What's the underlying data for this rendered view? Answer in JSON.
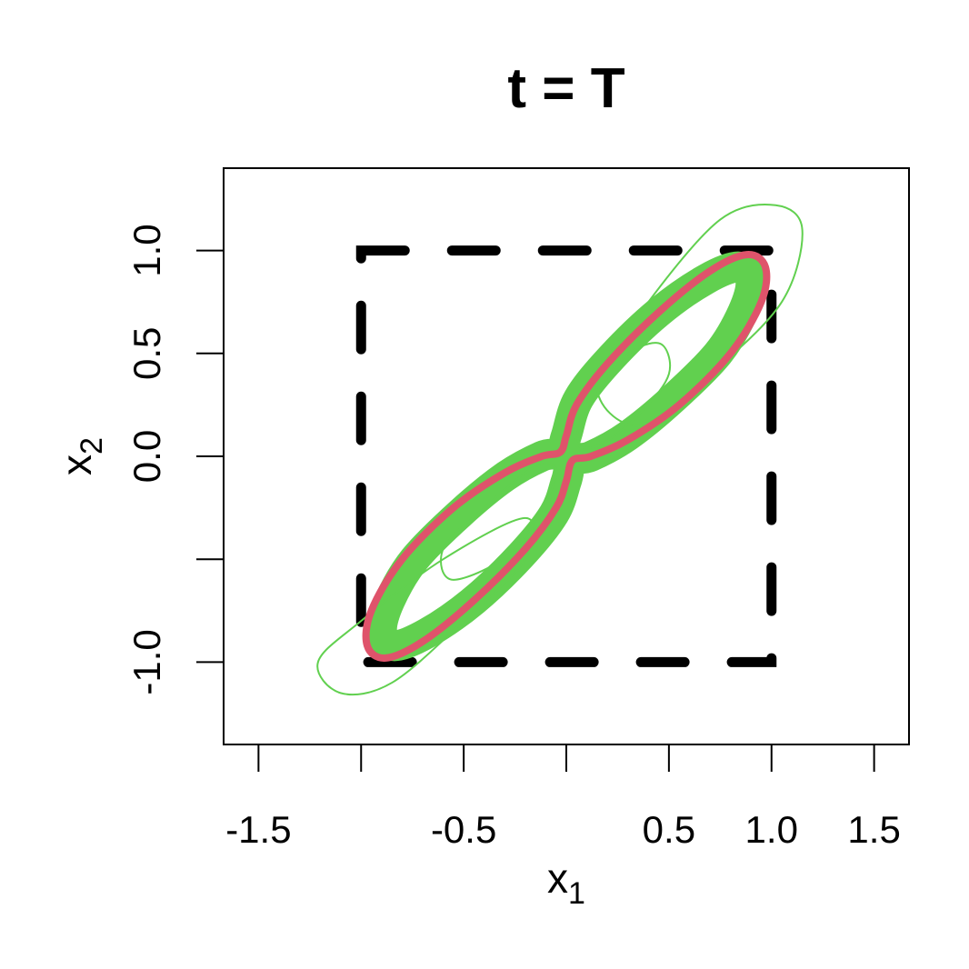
{
  "chart_data": {
    "type": "curves",
    "title": "t = T",
    "x_label": {
      "text": "x",
      "subscript": "1"
    },
    "y_label": {
      "text": "x",
      "subscript": "2"
    },
    "xlim": [
      -1.67,
      1.67
    ],
    "ylim": [
      -1.4,
      1.4
    ],
    "xticks": [
      {
        "value": -1.5,
        "label": "-1.5"
      },
      {
        "value": -1,
        "label": null
      },
      {
        "value": -0.5,
        "label": "-0.5"
      },
      {
        "value": 0,
        "label": null
      },
      {
        "value": 0.5,
        "label": "0.5"
      },
      {
        "value": 1,
        "label": "1.0"
      },
      {
        "value": 1.5,
        "label": "1.5"
      }
    ],
    "yticks": [
      {
        "value": -1,
        "label": "-1.0"
      },
      {
        "value": -0.5,
        "label": null
      },
      {
        "value": 0,
        "label": "0.0"
      },
      {
        "value": 0.5,
        "label": "0.5"
      },
      {
        "value": 1,
        "label": "1.0"
      }
    ],
    "reference_square": {
      "x": [
        -1,
        1
      ],
      "y": [
        -1,
        1
      ],
      "color": "#000000",
      "dashed": true
    },
    "series": [
      {
        "color": "#61d04f",
        "line_width": 34,
        "x": [
          0.0,
          0.06,
          0.22,
          0.45,
          0.68,
          0.84,
          0.9,
          0.86,
          0.74,
          0.52,
          0.3,
          0.12,
          0.03,
          0.0,
          -0.06,
          -0.22,
          -0.45,
          -0.68,
          -0.84,
          -0.9,
          -0.86,
          -0.74,
          -0.52,
          -0.3,
          -0.12,
          -0.03
        ],
        "y": [
          0.1,
          0.28,
          0.48,
          0.7,
          0.86,
          0.92,
          0.85,
          0.7,
          0.5,
          0.28,
          0.1,
          0.0,
          -0.02,
          -0.12,
          -0.28,
          -0.48,
          -0.7,
          -0.86,
          -0.92,
          -0.85,
          -0.7,
          -0.5,
          -0.28,
          -0.1,
          0.0,
          0.02
        ]
      },
      {
        "color": "#61d04f",
        "line_width": 2,
        "x": [
          0.15,
          0.4,
          0.75,
          1.02,
          1.15,
          1.05,
          0.7,
          0.35
        ],
        "y": [
          0.35,
          0.75,
          1.15,
          1.22,
          1.1,
          0.75,
          0.4,
          0.15
        ]
      },
      {
        "color": "#61d04f",
        "line_width": 2,
        "x": [
          -0.2,
          -0.6,
          -1.0,
          -1.21,
          -1.1,
          -0.85,
          -0.5,
          -0.2
        ],
        "y": [
          -0.3,
          -0.5,
          -0.8,
          -1.0,
          -1.15,
          -1.1,
          -0.8,
          -0.5
        ]
      },
      {
        "color": "#61d04f",
        "line_width": 2,
        "x": [
          0.05,
          0.25,
          0.45,
          0.5,
          0.35,
          0.15
        ],
        "y": [
          0.1,
          0.45,
          0.55,
          0.4,
          0.2,
          0.05
        ]
      },
      {
        "color": "#61d04f",
        "line_width": 2,
        "x": [
          -0.05,
          -0.25,
          -0.55,
          -0.6,
          -0.4,
          -0.15
        ],
        "y": [
          -0.1,
          -0.45,
          -0.6,
          -0.45,
          -0.25,
          -0.05
        ]
      },
      {
        "color": "#df536b",
        "line_width": 8,
        "x": [
          0.0,
          0.05,
          0.2,
          0.45,
          0.7,
          0.88,
          0.97,
          0.95,
          0.8,
          0.55,
          0.3,
          0.12,
          0.03,
          0.0,
          -0.05,
          -0.2,
          -0.45,
          -0.7,
          -0.88,
          -0.97,
          -0.95,
          -0.8,
          -0.55,
          -0.3,
          -0.12,
          -0.03
        ],
        "y": [
          0.1,
          0.25,
          0.45,
          0.7,
          0.9,
          0.98,
          0.92,
          0.75,
          0.5,
          0.25,
          0.08,
          0.0,
          -0.02,
          -0.12,
          -0.25,
          -0.45,
          -0.7,
          -0.9,
          -0.98,
          -0.92,
          -0.75,
          -0.5,
          -0.25,
          -0.08,
          0.0,
          0.02
        ]
      }
    ]
  }
}
